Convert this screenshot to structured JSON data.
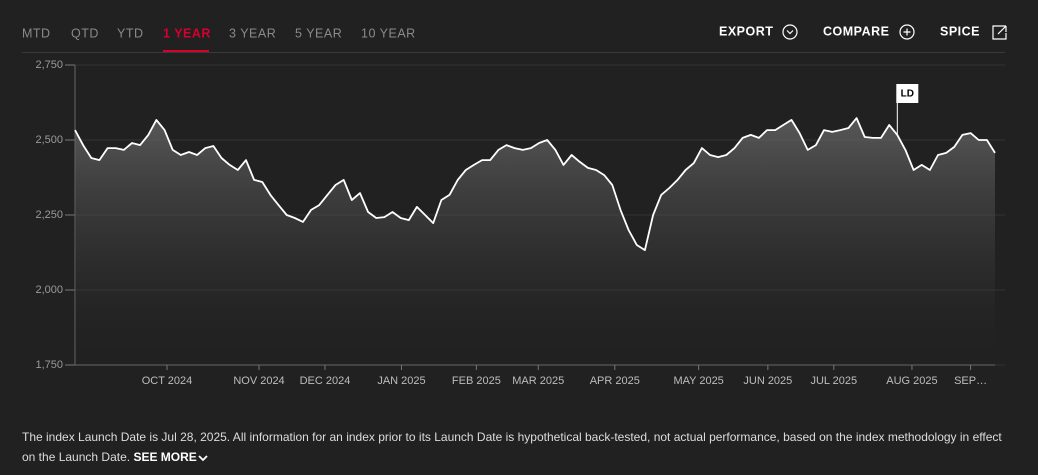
{
  "tabs": [
    "MTD",
    "QTD",
    "YTD",
    "1 YEAR",
    "3 YEAR",
    "5 YEAR",
    "10 YEAR"
  ],
  "actions": [
    "EXPORT",
    "COMPARE",
    "SPICE"
  ],
  "chart_data": {
    "type": "area",
    "color": "#ffffff",
    "values": [
      2533,
      2483,
      2440,
      2433,
      2473,
      2473,
      2467,
      2490,
      2483,
      2517,
      2567,
      2533,
      2467,
      2450,
      2460,
      2450,
      2473,
      2480,
      2440,
      2417,
      2400,
      2433,
      2367,
      2360,
      2317,
      2283,
      2250,
      2240,
      2227,
      2267,
      2283,
      2317,
      2350,
      2367,
      2300,
      2323,
      2260,
      2240,
      2243,
      2260,
      2240,
      2233,
      2277,
      2250,
      2223,
      2300,
      2317,
      2367,
      2400,
      2417,
      2433,
      2433,
      2467,
      2483,
      2473,
      2467,
      2473,
      2490,
      2500,
      2467,
      2417,
      2450,
      2427,
      2407,
      2400,
      2383,
      2350,
      2267,
      2200,
      2150,
      2133,
      2250,
      2317,
      2340,
      2367,
      2400,
      2423,
      2473,
      2450,
      2443,
      2450,
      2473,
      2507,
      2517,
      2507,
      2533,
      2533,
      2550,
      2567,
      2523,
      2467,
      2483,
      2533,
      2527,
      2533,
      2540,
      2573,
      2510,
      2507,
      2507,
      2550,
      2517,
      2467,
      2400,
      2417,
      2400,
      2450,
      2457,
      2477,
      2517,
      2523,
      2500,
      2500,
      2457
    ],
    "xlim": [
      0,
      113
    ],
    "xticks": [
      {
        "value": 11.3,
        "label": "OCT 2024"
      },
      {
        "value": 22.6,
        "label": "NOV 2024"
      },
      {
        "value": 30.7,
        "label": "DEC 2024"
      },
      {
        "value": 40.1,
        "label": "JAN 2025"
      },
      {
        "value": 49.3,
        "label": "FEB 2025"
      },
      {
        "value": 56.9,
        "label": "MAR 2025"
      },
      {
        "value": 66.3,
        "label": "APR 2025"
      },
      {
        "value": 76.6,
        "label": "MAY 2025"
      },
      {
        "value": 85.1,
        "label": "JUN 2025"
      },
      {
        "value": 93.2,
        "label": "JUL 2025"
      },
      {
        "value": 102.8,
        "label": "AUG 2025"
      },
      {
        "value": 110,
        "label": "SEP…"
      }
    ],
    "ylim": [
      1750,
      2750
    ],
    "yticks": [
      {
        "value": 2750,
        "label": "2,750"
      },
      {
        "value": 2500,
        "label": "2,500"
      },
      {
        "value": 2250,
        "label": "2,250"
      },
      {
        "value": 2000,
        "label": "2,000"
      },
      {
        "value": 1750,
        "label": "1,750"
      }
    ],
    "grid": true,
    "annotations": [
      {
        "text": "LD",
        "x": 101
      }
    ]
  },
  "footnote": {
    "text": "The index Launch Date is Jul 28, 2025. All information for an index prior to its Launch Date is hypothetical back-tested, not actual performance, based on the index methodology in effect on the Launch Date.",
    "link": "SEE MORE"
  }
}
